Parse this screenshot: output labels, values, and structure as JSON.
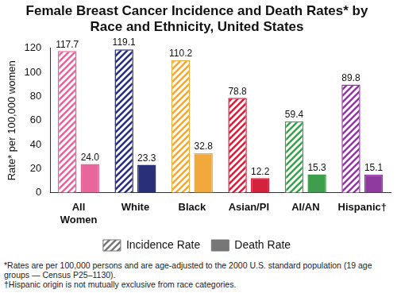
{
  "chart_data": {
    "type": "bar",
    "title": "Female Breast Cancer Incidence and Death Rates* by Race and Ethnicity, United States",
    "y_label": "Rate* per 100,000 women",
    "categories": [
      "All Women",
      "White",
      "Black",
      "Asian/PI",
      "AI/AN",
      "Hispanic†"
    ],
    "series": [
      {
        "name": "Incidence Rate",
        "color": "#777777",
        "colors": [
          "#e8669a",
          "#2a2f7a",
          "#f2a93b",
          "#d4213d",
          "#3f9e4d",
          "#8e3a9e"
        ],
        "values": [
          117.7,
          119.1,
          110.2,
          78.8,
          59.4,
          89.8
        ],
        "value_labels": [
          "117.7",
          "119.1",
          "110.2",
          "78.8",
          "59.4",
          "89.8"
        ]
      },
      {
        "name": "Death Rate",
        "color": "#777777",
        "colors": [
          "#e8669a",
          "#2a2f7a",
          "#f2a93b",
          "#d4213d",
          "#3f9e4d",
          "#8e3a9e"
        ],
        "values": [
          24.0,
          23.3,
          32.8,
          12.2,
          15.3,
          15.1
        ],
        "value_labels": [
          "24.0",
          "23.3",
          "32.8",
          "12.2",
          "15.3",
          "15.1"
        ]
      }
    ],
    "ylim": [
      0,
      120
    ],
    "yticks": [
      0,
      20,
      40,
      60,
      80,
      100,
      120
    ],
    "grid": false,
    "legend": "bottom",
    "data_labels": true,
    "annotations": [
      "*Rates are per 100,000 persons and are age-adjusted to the 2000 U.S. standard population (19 age groups — Census P25–1130).",
      "†Hispanic origin is not mutually exclusive from race categories."
    ]
  }
}
